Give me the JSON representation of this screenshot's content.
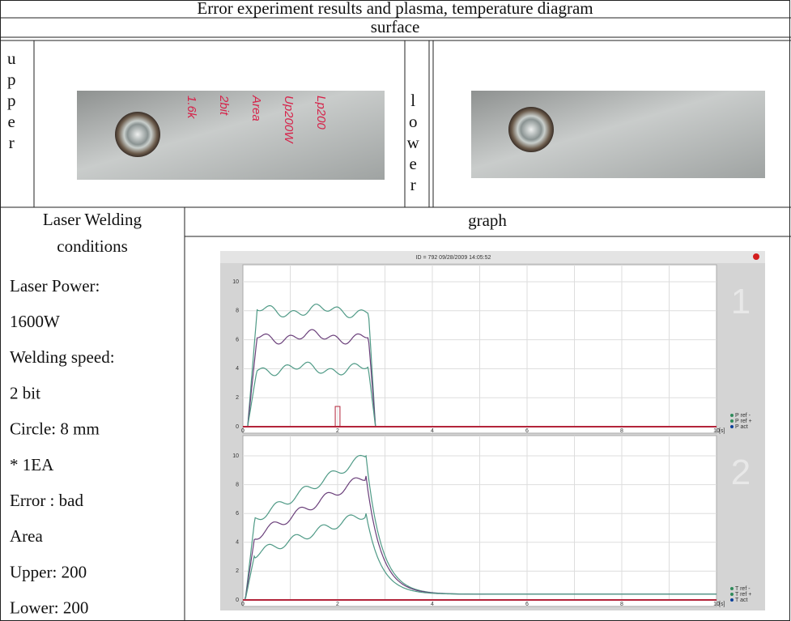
{
  "header": {
    "title": "Error experiment results and plasma, temperature diagram",
    "surface": "surface"
  },
  "surface": {
    "upper_label": "upper",
    "lower_label": "lower",
    "upper_markings": [
      "1.6k",
      "2bit",
      "Area",
      "Up200W",
      "Lp200"
    ]
  },
  "conditions": {
    "title_lines": [
      "Laser Welding",
      "conditions"
    ],
    "lines": [
      "Laser Power:",
      "1600W",
      "Welding speed:",
      "2 bit",
      "Circle: 8 mm",
      "* 1EA",
      "Error : bad",
      "Area",
      "Upper: 200",
      "Lower: 200"
    ]
  },
  "graph": {
    "title": "graph",
    "screen": {
      "id_text": "ID = 792 09/28/2009  14:05:52",
      "panels": [
        {
          "number": "1",
          "y_ticks": [
            "10",
            "8",
            "6",
            "4",
            "2",
            "0"
          ],
          "x_ticks": [
            "0",
            "2",
            "4",
            "6",
            "8",
            "10"
          ],
          "x_unit": "[s]",
          "legend": [
            "P ref -",
            "P ref +",
            "P act"
          ]
        },
        {
          "number": "2",
          "y_ticks": [
            "10",
            "8",
            "6",
            "4",
            "2",
            "0"
          ],
          "x_ticks": [
            "0",
            "2",
            "4",
            "6",
            "8",
            "10"
          ],
          "x_unit": "[s]",
          "legend": [
            "T ref -",
            "T ref +",
            "T act"
          ]
        }
      ]
    }
  }
}
